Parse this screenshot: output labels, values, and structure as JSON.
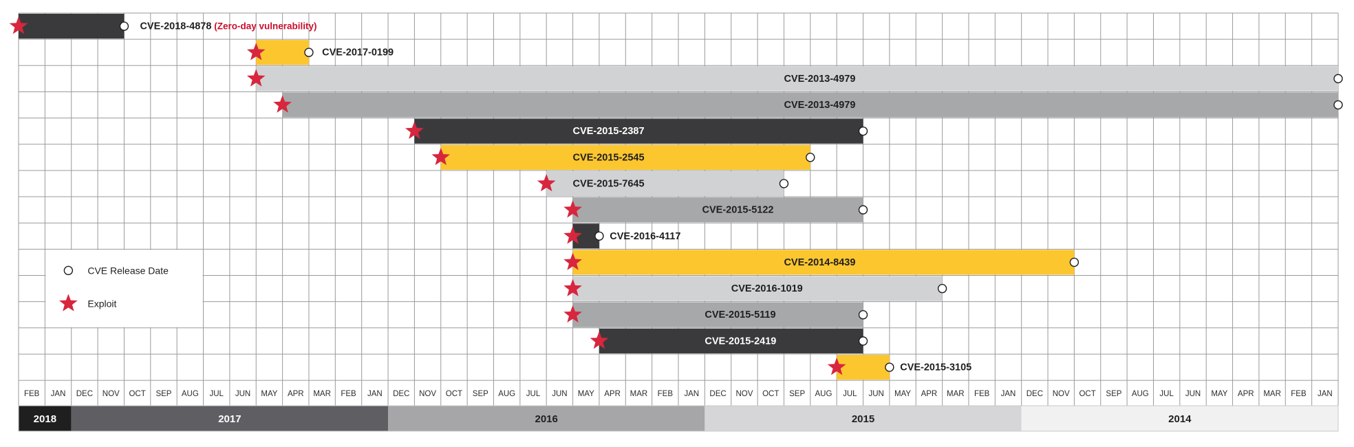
{
  "chart_data": {
    "type": "gantt",
    "x_axis": {
      "direction": "reverse-chronological",
      "months": [
        "FEB",
        "JAN",
        "DEC",
        "NOV",
        "OCT",
        "SEP",
        "AUG",
        "JUL",
        "JUN",
        "MAY",
        "APR",
        "MAR",
        "FEB",
        "JAN",
        "DEC",
        "NOV",
        "OCT",
        "SEP",
        "AUG",
        "JUL",
        "JUN",
        "MAY",
        "APR",
        "MAR",
        "FEB",
        "JAN",
        "DEC",
        "NOV",
        "OCT",
        "SEP",
        "AUG",
        "JUL",
        "JUN",
        "MAY",
        "APR",
        "MAR",
        "FEB",
        "JAN",
        "DEC",
        "NOV",
        "OCT",
        "SEP",
        "AUG",
        "JUL",
        "JUN",
        "MAY",
        "APR",
        "MAR",
        "FEB",
        "JAN"
      ],
      "years": [
        {
          "label": "2018",
          "start": 0,
          "span": 2,
          "fill": "#1f1f20",
          "text_color": "#ffffff"
        },
        {
          "label": "2017",
          "start": 2,
          "span": 12,
          "fill": "#5f5f63",
          "text_color": "#ffffff"
        },
        {
          "label": "2016",
          "start": 14,
          "span": 12,
          "fill": "#a6a6a8",
          "text_color": "#1f1f20"
        },
        {
          "label": "2015",
          "start": 26,
          "span": 12,
          "fill": "#d6d6d8",
          "text_color": "#1f1f20"
        },
        {
          "label": "2014",
          "start": 38,
          "span": 12,
          "fill": "#f1f1f2",
          "text_color": "#1f1f20"
        }
      ]
    },
    "series": [
      {
        "label": "CVE-2018-4878",
        "note": "(Zero-day vulnerability)",
        "exploit": "2018-02",
        "release": "2017-10",
        "start": 0.0,
        "end": 4.0,
        "color": "#3a3a3c",
        "label_color": "#1f1f20",
        "label_pos": 4.6
      },
      {
        "label": "CVE-2017-0199",
        "exploit": "2017-06",
        "release": "2017-04",
        "start": 9.0,
        "end": 11.0,
        "color": "#fcc62f",
        "label_color": "#1f1f20",
        "label_pos": 11.5
      },
      {
        "label": "CVE-2013-4979",
        "exploit": "2017-06",
        "release": "2014-01",
        "start": 9.0,
        "end": 50.0,
        "color": "#d1d2d4",
        "label_color": "#1f1f20",
        "label_pos": 29.0
      },
      {
        "label": "CVE-2013-4979",
        "exploit": "2017-05",
        "release": "2014-01",
        "start": 10.0,
        "end": 50.0,
        "color": "#a7a8aa",
        "label_color": "#1f1f20",
        "label_pos": 29.0
      },
      {
        "label": "CVE-2015-2387",
        "exploit": "2016-12",
        "release": "2015-07",
        "start": 15.0,
        "end": 32.0,
        "color": "#3a3a3c",
        "label_color": "#ffffff",
        "label_pos": 21.0
      },
      {
        "label": "CVE-2015-2545",
        "exploit": "2016-11",
        "release": "2015-09",
        "start": 16.0,
        "end": 30.0,
        "color": "#fcc62f",
        "label_color": "#1f1f20",
        "label_pos": 21.0
      },
      {
        "label": "CVE-2015-7645",
        "exploit": "2016-07",
        "release": "2015-10",
        "start": 20.0,
        "end": 29.0,
        "color": "#d1d2d4",
        "label_color": "#1f1f20",
        "label_pos": 21.0
      },
      {
        "label": "CVE-2015-5122",
        "exploit": "2016-06",
        "release": "2015-07",
        "start": 21.0,
        "end": 32.0,
        "color": "#a7a8aa",
        "label_color": "#1f1f20",
        "label_pos": 25.9
      },
      {
        "label": "CVE-2016-4117",
        "exploit": "2016-06",
        "release": "2016-05",
        "start": 21.0,
        "end": 22.0,
        "color": "#3a3a3c",
        "label_color": "#1f1f20",
        "label_pos": 22.4
      },
      {
        "label": "CVE-2014-8439",
        "exploit": "2016-06",
        "release": "2014-11",
        "start": 21.0,
        "end": 40.0,
        "color": "#fcc62f",
        "label_color": "#1f1f20",
        "label_pos": 29.0
      },
      {
        "label": "CVE-2016-1019",
        "exploit": "2016-06",
        "release": "2015-04",
        "start": 21.0,
        "end": 35.0,
        "color": "#d1d2d4",
        "label_color": "#1f1f20",
        "label_pos": 27.0
      },
      {
        "label": "CVE-2015-5119",
        "exploit": "2016-06",
        "release": "2015-07",
        "start": 21.0,
        "end": 32.0,
        "color": "#a7a8aa",
        "label_color": "#1f1f20",
        "label_pos": 26.0
      },
      {
        "label": "CVE-2015-2419",
        "exploit": "2016-05",
        "release": "2015-07",
        "start": 22.0,
        "end": 32.0,
        "color": "#3a3a3c",
        "label_color": "#ffffff",
        "label_pos": 26.0
      },
      {
        "label": "CVE-2015-3105",
        "exploit": "2015-08",
        "release": "2015-06",
        "start": 31.0,
        "end": 33.0,
        "color": "#fcc62f",
        "label_color": "#1f1f20",
        "label_pos": 33.4
      }
    ],
    "legend": {
      "position": "left",
      "items": [
        {
          "label": "CVE Release Date",
          "marker": "circle-icon"
        },
        {
          "label": "Exploit",
          "marker": "star-icon"
        }
      ]
    },
    "colors": {
      "exploit_star": "#d7263d",
      "note_text": "#c8102e",
      "grid": "#9a9a9c",
      "month_text": "#2b2b2d"
    },
    "grid": true
  }
}
